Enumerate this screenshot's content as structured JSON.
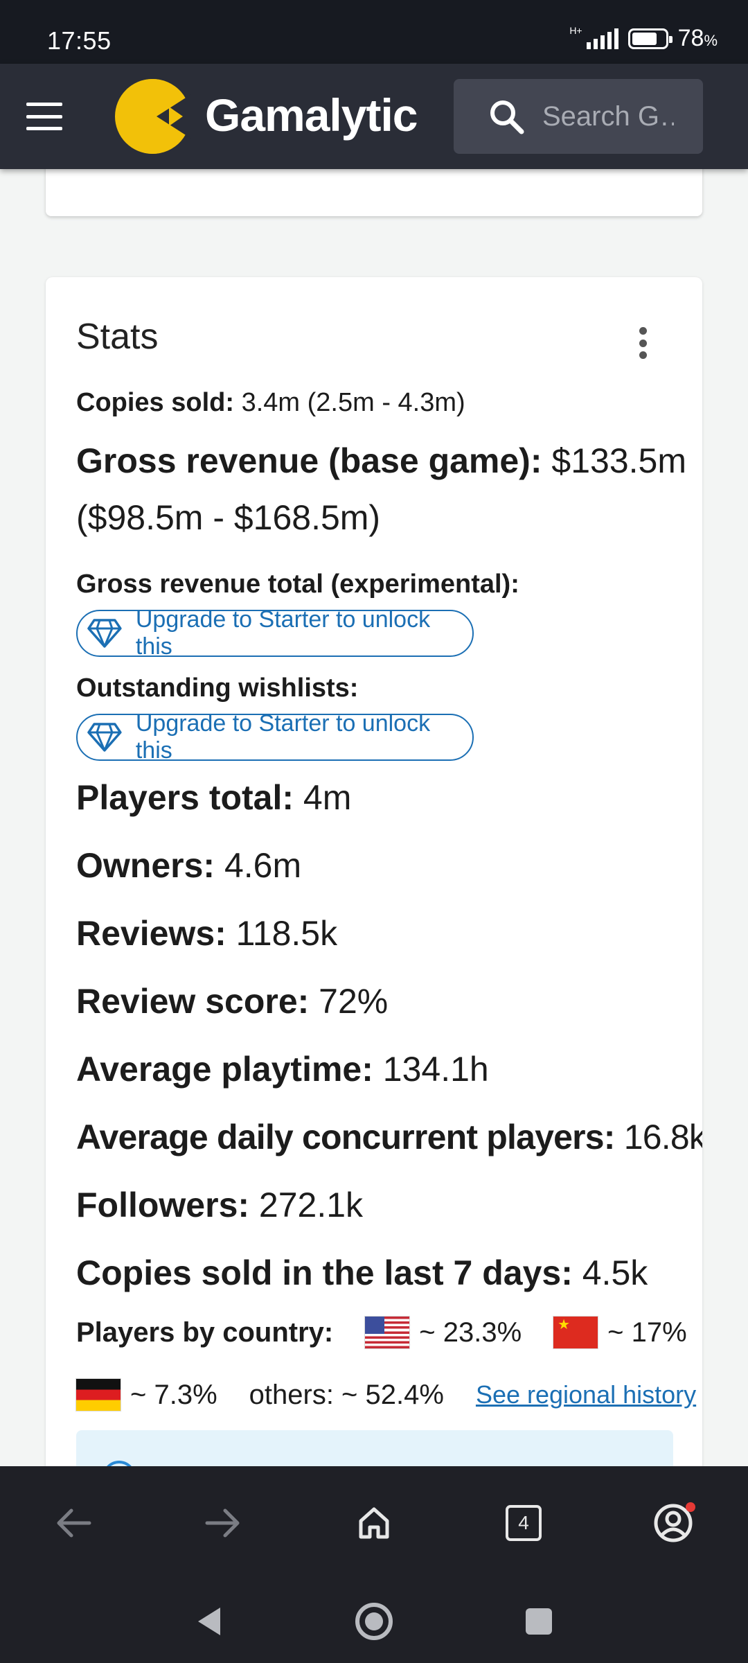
{
  "status_bar": {
    "time": "17:55",
    "network": "H+",
    "battery_percent": "78",
    "battery_unit": "%"
  },
  "app_bar": {
    "brand": "Gamalytic",
    "search_placeholder": "Search G…",
    "logo_color": "#f2c109"
  },
  "stats": {
    "title": "Stats",
    "copies_sold": {
      "label": "Copies sold:",
      "value": " 3.4m (2.5m - 4.3m)"
    },
    "gross_revenue": {
      "label": "Gross revenue (base game):",
      "value": " $133.5m",
      "value_line2": "($98.5m - $168.5m)"
    },
    "gross_revenue_total": {
      "label": "Gross revenue total (experimental):"
    },
    "outstanding_wishlists": {
      "label": "Outstanding wishlists:"
    },
    "upgrade_text": "Upgrade to Starter to unlock this",
    "players_total": {
      "label": "Players total:",
      "value": " 4m"
    },
    "owners": {
      "label": "Owners:",
      "value": " 4.6m"
    },
    "reviews": {
      "label": "Reviews:",
      "value": " 118.5k"
    },
    "review_score": {
      "label": "Review score:",
      "value": " 72%"
    },
    "avg_playtime": {
      "label": "Average playtime:",
      "value": " 134.1h"
    },
    "avg_concurrent": {
      "label": "Average daily concurrent players:",
      "value": " 16.8k"
    },
    "followers": {
      "label": "Followers:",
      "value": " 272.1k"
    },
    "copies_7d": {
      "label": "Copies sold in the last 7 days:",
      "value": " 4.5k"
    },
    "players_by_country": {
      "label": "Players by country:",
      "countries": [
        {
          "flag": "us-flag",
          "value": "~ 23.3%"
        },
        {
          "flag": "cn-flag",
          "value": "~ 17%"
        },
        {
          "flag": "de-flag",
          "value": "~ 7.3%"
        }
      ],
      "others": "others: ~ 52.4%",
      "history_link": "See regional history"
    },
    "accent_color": "#1b6fb4"
  },
  "browser_nav": {
    "tab_count": "4"
  }
}
